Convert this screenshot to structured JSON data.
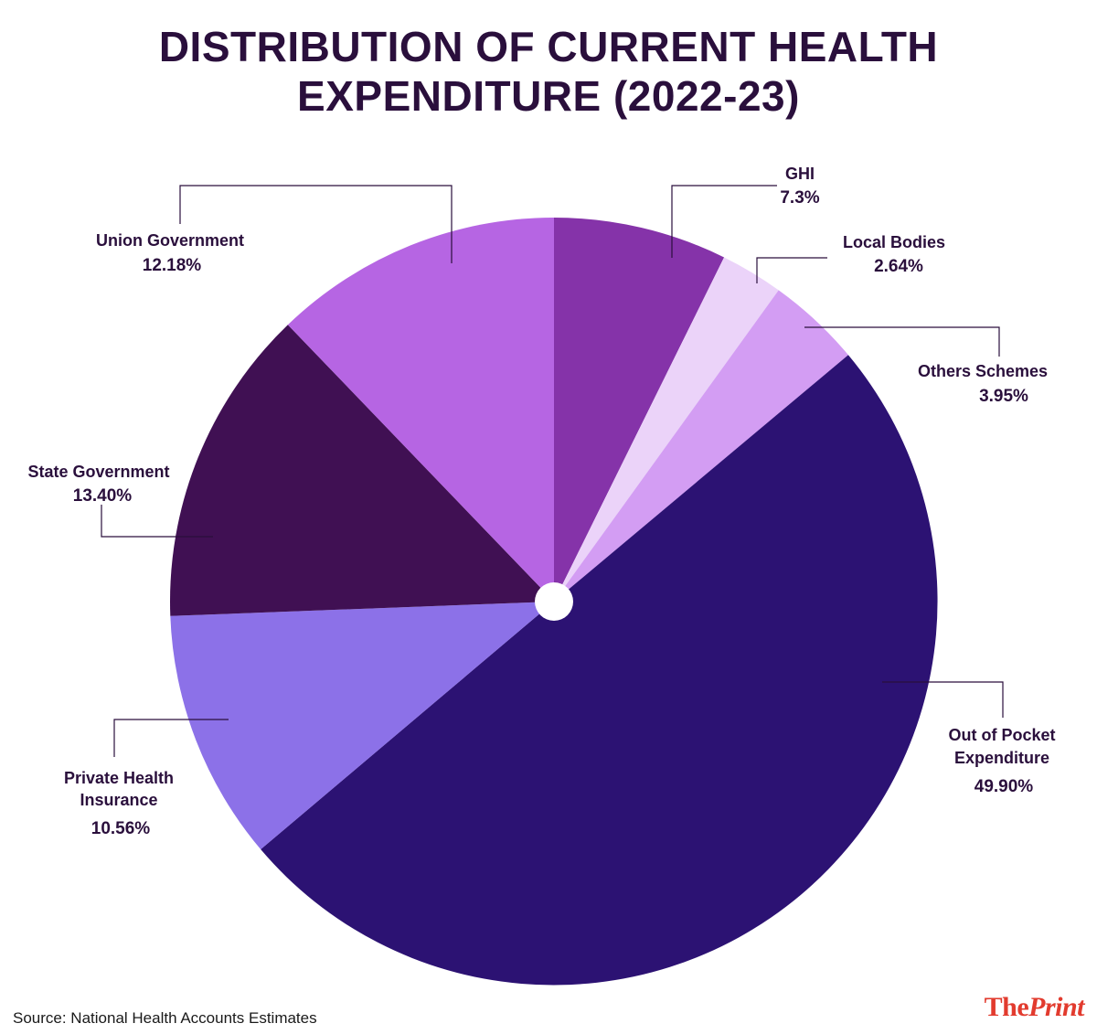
{
  "title": {
    "line1": "DISTRIBUTION OF CURRENT HEALTH",
    "line2": "EXPENDITURE (2022-23)"
  },
  "chart_data": {
    "type": "pie",
    "title": "DISTRIBUTION OF CURRENT HEALTH EXPENDITURE (2022-23)",
    "unit": "%",
    "slices": [
      {
        "name": "GHI",
        "value": 7.3,
        "label": "7.3%",
        "color": "#8533a9"
      },
      {
        "name": "Local Bodies",
        "value": 2.64,
        "label": "2.64%",
        "color": "#ebd3f9"
      },
      {
        "name": "Others Schemes",
        "value": 3.95,
        "label": "3.95%",
        "color": "#d39df3"
      },
      {
        "name": "Out of Pocket Expenditure",
        "value": 49.9,
        "label": "49.90%",
        "color": "#2c1273"
      },
      {
        "name": "Private Health Insurance",
        "value": 10.56,
        "label": "10.56%",
        "color": "#8c71e8"
      },
      {
        "name": "State Government",
        "value": 13.4,
        "label": "13.40%",
        "color": "#401053"
      },
      {
        "name": "Union Government",
        "value": 12.18,
        "label": "12.18%",
        "color": "#b665e3"
      }
    ]
  },
  "footer": {
    "source": "Source: National Health Accounts Estimates",
    "logo_part1": "The",
    "logo_part2": "Print"
  }
}
